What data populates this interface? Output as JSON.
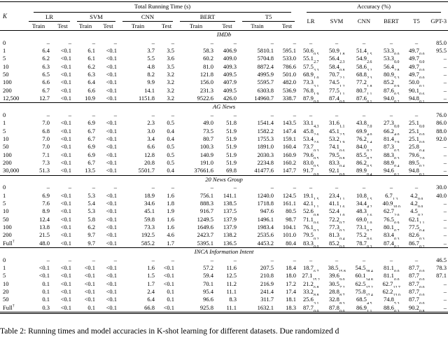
{
  "header": {
    "k_label": "K",
    "running_time_label": "Total Running Time (s)",
    "accuracy_label": "Accuracy (%)",
    "train_label": "Train",
    "test_label": "Test",
    "time_models": [
      "LR",
      "SVM",
      "CNN",
      "BERT",
      "T5"
    ],
    "acc_models": [
      "LR",
      "SVM",
      "CNN",
      "BERT",
      "T5",
      "GPT-3"
    ]
  },
  "sections": [
    {
      "name": "IMDb",
      "rows": [
        {
          "k": "0",
          "times": [
            "–",
            "–",
            "–",
            "–",
            "–",
            "–",
            "–",
            "–",
            "–",
            "–"
          ],
          "acc": [
            "–",
            "–",
            "–",
            "–",
            "–",
            "85.0"
          ]
        },
        {
          "k": "1",
          "times": [
            "6.4",
            "<0.1",
            "6.1",
            "<0.1",
            "3.7",
            "3.5",
            "58.3",
            "406.9",
            "5810.1",
            "595.1"
          ],
          "acc": [
            "50.6|0.5",
            "50.9|1.8",
            "51.4|1.5",
            "53.3|0.0",
            "49.7|0.0",
            "95.5"
          ]
        },
        {
          "k": "5",
          "times": [
            "6.2",
            "<0.1",
            "6.1",
            "<0.1",
            "5.5",
            "3.6",
            "60.2",
            "409.0",
            "5704.8",
            "533.0"
          ],
          "acc": [
            "55.1|2.7",
            "56.4|2.3",
            "54.9|2.6",
            "53.3|0.0",
            "49.7|0.0",
            "–"
          ]
        },
        {
          "k": "10",
          "times": [
            "6.3",
            "<0.1",
            "6.2",
            "<0.1",
            "4.8",
            "3.5",
            "81.0",
            "409.3",
            "8872.4",
            "786.6"
          ],
          "acc": [
            "57.5|3.3",
            "58.4|0.8",
            "58.6|3.2",
            "56.4|2.8",
            "49.7|0.0",
            "–"
          ]
        },
        {
          "k": "50",
          "times": [
            "6.5",
            "<0.1",
            "6.3",
            "<0.1",
            "8.2",
            "3.2",
            "121.8",
            "409.5",
            "4995.9",
            "501.0"
          ],
          "acc": [
            "68.9|1.0",
            "70.7|2.1",
            "68.8|2.3",
            "80.9|5.3",
            "49.7|0.0",
            "–"
          ]
        },
        {
          "k": "100",
          "times": [
            "6.6",
            "<0.1",
            "6.4",
            "<0.1",
            "9.9",
            "3.2",
            "156.0",
            "407.9",
            "5595.7",
            "482.0"
          ],
          "acc": [
            "73.3|3.1",
            "74.5|1.2",
            "77.2|1.8",
            "85.2|0.9",
            "50.0|0.1",
            "–"
          ]
        },
        {
          "k": "200",
          "times": [
            "6.7",
            "<0.1",
            "6.6",
            "<0.1",
            "14.1",
            "3.2",
            "231.3",
            "409.5",
            "6303.8",
            "536.9"
          ],
          "acc": [
            "76.8|1.9",
            "77.5|1.1",
            "80.7|1.1",
            "87.6|0.5",
            "90.1|0.6",
            "–"
          ]
        },
        {
          "k": "12,500",
          "times": [
            "12.7",
            "<0.1",
            "10.9",
            "<0.1",
            "1151.8",
            "3.2",
            "9522.6",
            "426.0",
            "14960.7",
            "338.7"
          ],
          "acc": [
            "87.9|0.0",
            "87.4|0.0",
            "87.6|0.1",
            "94.0|0.2",
            "94.8|0.1",
            "–"
          ]
        }
      ]
    },
    {
      "name": "AG News",
      "rows": [
        {
          "k": "0",
          "times": [
            "–",
            "–",
            "–",
            "–",
            "–",
            "–",
            "–",
            "–",
            "–",
            "–"
          ],
          "acc": [
            "–",
            "–",
            "–",
            "–",
            "–",
            "76.0"
          ]
        },
        {
          "k": "1",
          "times": [
            "7.0",
            "<0.1",
            "6.9",
            "<0.1",
            "2.3",
            "0.5",
            "49.0",
            "51.8",
            "1541.4",
            "143.5"
          ],
          "acc": [
            "33.1|4.3",
            "31.6|1.1",
            "43.8|7.0",
            "27.3|0.0",
            "25.1|0.0",
            "86.0"
          ]
        },
        {
          "k": "5",
          "times": [
            "6.8",
            "<0.1",
            "6.7",
            "<0.1",
            "3.0",
            "0.4",
            "73.5",
            "51.9",
            "1582.2",
            "147.4"
          ],
          "acc": [
            "45.8|2.6",
            "45.1|2.5",
            "69.9|4.0",
            "66.2|4.0",
            "25.1|0.0",
            "88.0"
          ]
        },
        {
          "k": "10",
          "times": [
            "7.0",
            "<0.1",
            "6.7",
            "<0.1",
            "3.4",
            "0.4",
            "80.7",
            "51.9",
            "1755.3",
            "159.1"
          ],
          "acc": [
            "53.4|2.6",
            "53.2|1.9",
            "76.2|1.4",
            "81.4|2.9",
            "25.1|0.0",
            "92.0"
          ]
        },
        {
          "k": "50",
          "times": [
            "7.0",
            "<0.1",
            "6.9",
            "<0.1",
            "6.6",
            "0.5",
            "100.3",
            "51.9",
            "1891.0",
            "160.4"
          ],
          "acc": [
            "73.7|0.3",
            "74.1|0.6",
            "84.0|0.2",
            "87.3|0.5",
            "25.8|0.4",
            "–"
          ]
        },
        {
          "k": "100",
          "times": [
            "7.1",
            "<0.1",
            "6.9",
            "<0.1",
            "12.8",
            "0.5",
            "140.9",
            "51.9",
            "2030.3",
            "160.9"
          ],
          "acc": [
            "79.6|0.5",
            "79.5|0.8",
            "85.5|0.7",
            "88.3|0.3",
            "79.6|2.0",
            "–"
          ]
        },
        {
          "k": "200",
          "times": [
            "7.3",
            "<0.1",
            "6.7",
            "<0.1",
            "20.8",
            "0.5",
            "191.0",
            "51.9",
            "2234.8",
            "160.2"
          ],
          "acc": [
            "83.0|0.5",
            "83.3|0.4",
            "86.2|0.5",
            "88.9|0.4",
            "89.5|0.2",
            "–"
          ]
        },
        {
          "k": "30,000",
          "times": [
            "51.3",
            "<0.1",
            "13.5",
            "<0.1",
            "5501.7",
            "0.4",
            "37661.6",
            "69.8",
            "41477.6",
            "147.7"
          ],
          "acc": [
            "91.7|0.0",
            "92.1|0.0",
            "89.9|0.4",
            "94.6|0.1",
            "94.8|0.1",
            "–"
          ]
        }
      ]
    },
    {
      "name": "20 News Group",
      "rows": [
        {
          "k": "0",
          "times": [
            "–",
            "–",
            "–",
            "–",
            "–",
            "–",
            "–",
            "–",
            "–",
            "–"
          ],
          "acc": [
            "–",
            "–",
            "–",
            "–",
            "–",
            "30.0"
          ]
        },
        {
          "k": "1",
          "times": [
            "6.9",
            "<0.1",
            "5.3",
            "<0.1",
            "18.9",
            "1.6",
            "756.1",
            "141.1",
            "1240.0",
            "124.5"
          ],
          "acc": [
            "19.1|1.5",
            "23.4|1.1",
            "10.8|1.5",
            "6.7|1.3",
            "4.2|0.0",
            "40.0"
          ]
        },
        {
          "k": "5",
          "times": [
            "7.6",
            "<0.1",
            "5.4",
            "<0.1",
            "34.6",
            "1.8",
            "888.3",
            "138.5",
            "1718.8",
            "161.1"
          ],
          "acc": [
            "42.1|1.1",
            "41.1|1.6",
            "34.4|4.2",
            "40.9|10.0",
            "4.2|0.0",
            "–"
          ]
        },
        {
          "k": "10",
          "times": [
            "8.9",
            "<0.1",
            "5.3",
            "<0.1",
            "45.1",
            "1.9",
            "916.7",
            "137.5",
            "947.6",
            "80.5"
          ],
          "acc": [
            "52.6|0.8",
            "52.4|1.0",
            "48.3|1.6",
            "62.7|2.0",
            "4.5|0.2",
            "–"
          ]
        },
        {
          "k": "50",
          "times": [
            "12.4",
            "<0.1",
            "5.8",
            "<0.1",
            "59.8",
            "1.6",
            "1249.5",
            "137.9",
            "1496.1",
            "98.7"
          ],
          "acc": [
            "71.1|0.6",
            "72.2|0.7",
            "69.0|1.0",
            "76.5|0.9",
            "62.1|1.1",
            "–"
          ]
        },
        {
          "k": "100",
          "times": [
            "13.8",
            "<0.1",
            "6.2",
            "<0.1",
            "73.3",
            "1.6",
            "1649.6",
            "137.9",
            "1983.4",
            "104.1"
          ],
          "acc": [
            "76.1|0.3",
            "77.3|0.3",
            "73.1|0.7",
            "80.1|0.7",
            "77.5|0.4",
            "–"
          ]
        },
        {
          "k": "200",
          "times": [
            "21.5",
            "<0.1",
            "9.7",
            "<0.1",
            "192.5",
            "4.6",
            "2423.7",
            "138.2",
            "2535.6",
            "101.0"
          ],
          "acc": [
            "79.5|0.2",
            "81.3|0.4",
            "75.2|0.6",
            "83.4|0.3",
            "82.6|0.3",
            "–"
          ]
        },
        {
          "k": "Full†",
          "times": [
            "48.0",
            "<0.1",
            "9.7",
            "<0.1",
            "585.2",
            "1.7",
            "5395.1",
            "136.5",
            "4453.2",
            "80.4"
          ],
          "acc": [
            "83.3|0.0",
            "85.2|0.0",
            "78.7|0.3",
            "87.4|0.1",
            "86.7|0.2",
            "–"
          ]
        }
      ]
    },
    {
      "name": "INCA Information Intent",
      "rows": [
        {
          "k": "0",
          "times": [
            "–",
            "–",
            "–",
            "–",
            "–",
            "–",
            "–",
            "–",
            "–",
            "–"
          ],
          "acc": [
            "–",
            "–",
            "–",
            "–",
            "–",
            "46.5"
          ]
        },
        {
          "k": "1",
          "times": [
            "<0.1",
            "<0.1",
            "<0.1",
            "<0.1",
            "1.6",
            "<0.1",
            "57.2",
            "11.6",
            "207.5",
            "18.4"
          ],
          "acc": [
            "18.7|6.7",
            "38.5|15.8",
            "54.5|28.4",
            "81.1|0.0",
            "87.7|0.0",
            "78.3"
          ]
        },
        {
          "k": "5",
          "times": [
            "<0.1",
            "<0.1",
            "<0.1",
            "<0.1",
            "1.5",
            "<0.1",
            "59.4",
            "12.5",
            "210.8",
            "18.0"
          ],
          "acc": [
            "27.1|15.2",
            "39.6|9.0",
            "60.1|14.8",
            "81.1|0.0",
            "87.7|0.0",
            "87.1"
          ]
        },
        {
          "k": "10",
          "times": [
            "0.1",
            "<0.1",
            "<0.1",
            "<0.1",
            "1.7",
            "<0.1",
            "70.1",
            "11.2",
            "216.9",
            "17.2"
          ],
          "acc": [
            "21.2|6.8",
            "30.5|7.2",
            "62.5|17.2",
            "62.7|12.7",
            "87.7|0.0",
            "–"
          ]
        },
        {
          "k": "20",
          "times": [
            "0.1",
            "<0.1",
            "<0.1",
            "<0.1",
            "2.4",
            "0.1",
            "95.4",
            "11.1",
            "241.4",
            "17.4"
          ],
          "acc": [
            "33.2|8.8",
            "28.8|8.7",
            "75.8|17.4",
            "62.2|13.0",
            "87.7|0.0",
            "–"
          ]
        },
        {
          "k": "50",
          "times": [
            "0.1",
            "<0.1",
            "<0.1",
            "<0.1",
            "6.4",
            "0.1",
            "96.6",
            "8.3",
            "311.7",
            "18.1"
          ],
          "acc": [
            "25.6|3.1",
            "32.8|8.3",
            "68.5|4.5",
            "74.8|5.3",
            "87.7|0.0",
            "–"
          ]
        },
        {
          "k": "Full†",
          "times": [
            "0.3",
            "<0.1",
            "0.1",
            "<0.1",
            "66.8",
            "<0.1",
            "925.8",
            "11.1",
            "1632.1",
            "18.3"
          ],
          "acc": [
            "87.7|0.0",
            "87.8|0.0",
            "86.9|1.1",
            "88.6|0.3",
            "90.2|0.8",
            "–"
          ]
        }
      ]
    }
  ],
  "caption": "Table 2: Running times and model accuracies in K-shot learning for different datasets. Due randomized d"
}
